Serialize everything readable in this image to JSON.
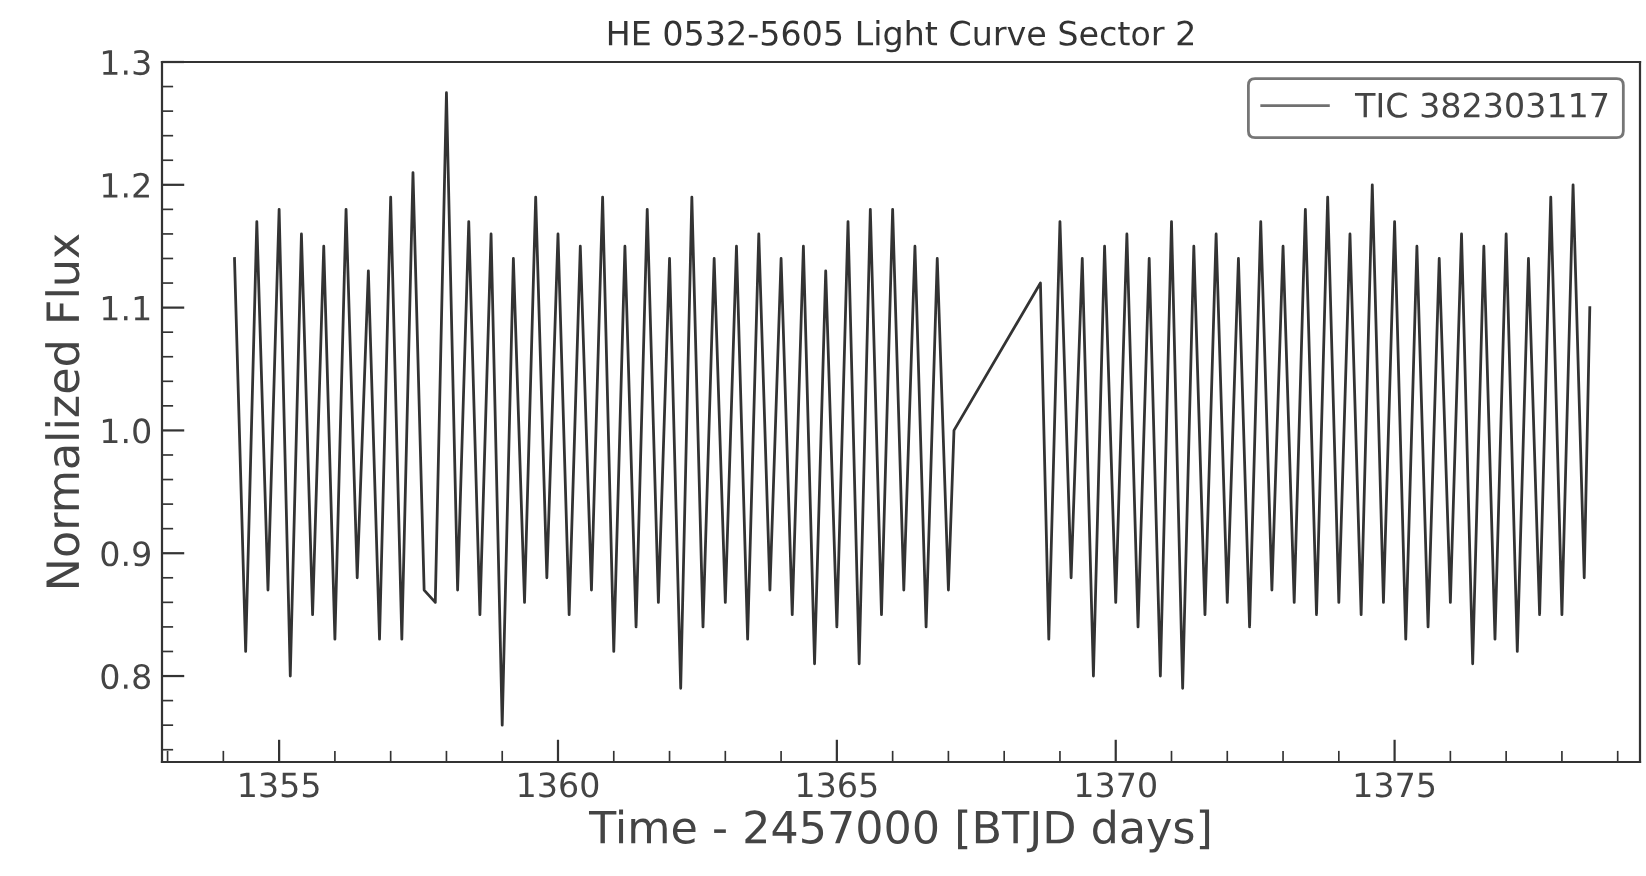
{
  "chart_data": {
    "type": "line",
    "title": "HE 0532-5605 Light Curve Sector 2",
    "xlabel": "Time - 2457000 [BTJD days]",
    "ylabel": "Normalized Flux",
    "x": [
      1354.2,
      1354.4,
      1354.6,
      1354.8,
      1355.0,
      1355.2,
      1355.4,
      1355.6,
      1355.8,
      1356.0,
      1356.2,
      1356.4,
      1356.6,
      1356.8,
      1357.0,
      1357.2,
      1357.4,
      1357.6,
      1357.8,
      1358.0,
      1358.2,
      1358.4,
      1358.6,
      1358.8,
      1359.0,
      1359.2,
      1359.4,
      1359.6,
      1359.8,
      1360.0,
      1360.2,
      1360.4,
      1360.6,
      1360.8,
      1361.0,
      1361.2,
      1361.4,
      1361.6,
      1361.8,
      1362.0,
      1362.2,
      1362.4,
      1362.6,
      1362.8,
      1363.0,
      1363.2,
      1363.4,
      1363.6,
      1363.8,
      1364.0,
      1364.2,
      1364.4,
      1364.6,
      1364.8,
      1365.0,
      1365.2,
      1365.4,
      1365.6,
      1365.8,
      1366.0,
      1366.2,
      1366.4,
      1366.6,
      1366.8,
      1367.0,
      1367.1,
      1368.65,
      1368.8,
      1369.0,
      1369.2,
      1369.4,
      1369.6,
      1369.8,
      1370.0,
      1370.2,
      1370.4,
      1370.6,
      1370.8,
      1371.0,
      1371.2,
      1371.4,
      1371.6,
      1371.8,
      1372.0,
      1372.2,
      1372.4,
      1372.6,
      1372.8,
      1373.0,
      1373.2,
      1373.4,
      1373.6,
      1373.8,
      1374.0,
      1374.2,
      1374.4,
      1374.6,
      1374.8,
      1375.0,
      1375.2,
      1375.4,
      1375.6,
      1375.8,
      1376.0,
      1376.2,
      1376.4,
      1376.6,
      1376.8,
      1377.0,
      1377.2,
      1377.4,
      1377.6,
      1377.8,
      1378.0,
      1378.2,
      1378.4,
      1378.5
    ],
    "series": [
      {
        "name": "TIC 382303117",
        "color": "#333333",
        "values": [
          1.14,
          0.82,
          1.17,
          0.87,
          1.18,
          0.8,
          1.16,
          0.85,
          1.15,
          0.83,
          1.18,
          0.88,
          1.13,
          0.83,
          1.19,
          0.83,
          1.21,
          0.87,
          0.86,
          1.275,
          0.87,
          1.17,
          0.85,
          1.16,
          0.76,
          1.14,
          0.86,
          1.19,
          0.88,
          1.16,
          0.85,
          1.15,
          0.87,
          1.19,
          0.82,
          1.15,
          0.84,
          1.18,
          0.86,
          1.14,
          0.79,
          1.19,
          0.84,
          1.14,
          0.86,
          1.15,
          0.83,
          1.16,
          0.87,
          1.14,
          0.85,
          1.15,
          0.81,
          1.13,
          0.84,
          1.17,
          0.81,
          1.18,
          0.85,
          1.18,
          0.87,
          1.15,
          0.84,
          1.14,
          0.87,
          1.0,
          1.12,
          0.83,
          1.17,
          0.88,
          1.14,
          0.8,
          1.15,
          0.86,
          1.16,
          0.84,
          1.14,
          0.8,
          1.17,
          0.79,
          1.15,
          0.85,
          1.16,
          0.86,
          1.14,
          0.84,
          1.17,
          0.87,
          1.15,
          0.86,
          1.18,
          0.85,
          1.19,
          0.86,
          1.16,
          0.85,
          1.2,
          0.86,
          1.17,
          0.83,
          1.15,
          0.84,
          1.14,
          0.86,
          1.16,
          0.81,
          1.15,
          0.83,
          1.16,
          0.82,
          1.14,
          0.85,
          1.19,
          0.85,
          1.2,
          0.88,
          1.1
        ]
      }
    ],
    "xlim": [
      1352.9,
      1379.4
    ],
    "ylim": [
      0.73,
      1.3
    ],
    "xticks": [
      1355,
      1360,
      1365,
      1370,
      1375
    ],
    "yticks": [
      0.8,
      0.9,
      {
        "value": 1,
        "label": "1.0"
      },
      1.1,
      1.2,
      1.3
    ],
    "grid": false,
    "legend": "top right",
    "marker": "none",
    "line_style": "solid"
  }
}
